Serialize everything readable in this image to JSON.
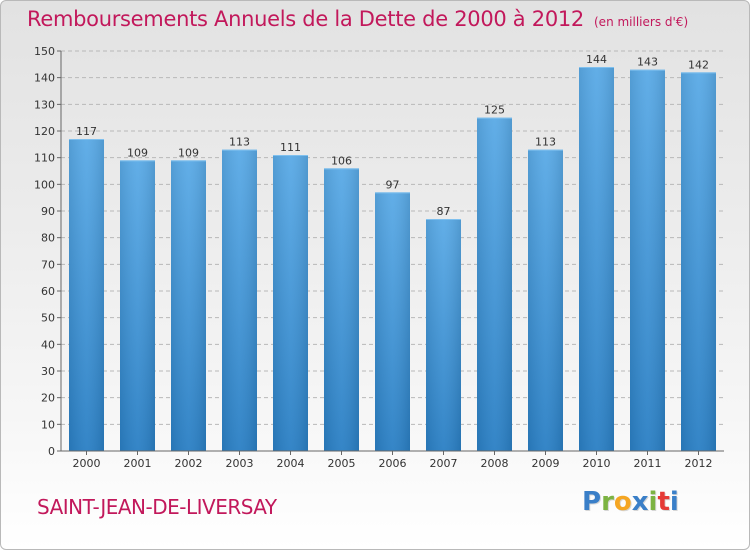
{
  "chart_data": {
    "type": "bar",
    "title": "Remboursements Annuels de la Dette de 2000 à 2012",
    "subtitle": "(en milliers d'€)",
    "categories": [
      "2000",
      "2001",
      "2002",
      "2003",
      "2004",
      "2005",
      "2006",
      "2007",
      "2008",
      "2009",
      "2010",
      "2011",
      "2012"
    ],
    "values": [
      117,
      109,
      109,
      113,
      111,
      106,
      97,
      87,
      125,
      113,
      144,
      143,
      142
    ],
    "ylim": [
      0,
      150
    ],
    "yticks": [
      0,
      10,
      20,
      30,
      40,
      50,
      60,
      70,
      80,
      90,
      100,
      110,
      120,
      130,
      140,
      150
    ],
    "xlabel": "",
    "ylabel": "",
    "grid": true,
    "bar_color_top": "#5aaae6",
    "bar_color_bottom": "#2a7fc4"
  },
  "footer": {
    "commune": "SAINT-JEAN-DE-LIVERSAY"
  },
  "logo": {
    "text": "Proxiti",
    "letters": [
      "P",
      "r",
      "o",
      "x",
      "i",
      "t",
      "i"
    ],
    "colors": [
      "#3a7fc8",
      "#7cb342",
      "#f5a623",
      "#3a7fc8",
      "#7cb342",
      "#e53935",
      "#3a7fc8"
    ]
  }
}
